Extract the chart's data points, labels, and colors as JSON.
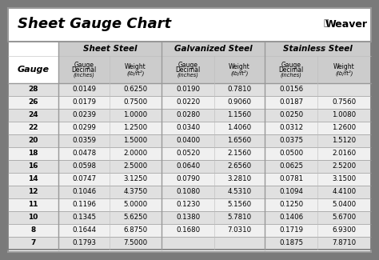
{
  "title": "Sheet Gauge Chart",
  "bg_outer": "#7a7a7a",
  "bg_white": "#ffffff",
  "gauges": [
    "28",
    "26",
    "24",
    "22",
    "20",
    "18",
    "16",
    "14",
    "12",
    "11",
    "10",
    "8",
    "7"
  ],
  "ss_dec": [
    "0.0149",
    "0.0179",
    "0.0239",
    "0.0299",
    "0.0359",
    "0.0478",
    "0.0598",
    "0.0747",
    "0.1046",
    "0.1196",
    "0.1345",
    "0.1644",
    "0.1793"
  ],
  "ss_wt": [
    "0.6250",
    "0.7500",
    "1.0000",
    "1.2500",
    "1.5000",
    "2.0000",
    "2.5000",
    "3.1250",
    "4.3750",
    "5.0000",
    "5.6250",
    "6.8750",
    "7.5000"
  ],
  "gv_dec": [
    "0.0190",
    "0.0220",
    "0.0280",
    "0.0340",
    "0.0400",
    "0.0520",
    "0.0640",
    "0.0790",
    "0.1080",
    "0.1230",
    "0.1380",
    "0.1680",
    ""
  ],
  "gv_wt": [
    "0.7810",
    "0.9060",
    "1.1560",
    "1.4060",
    "1.6560",
    "2.1560",
    "2.6560",
    "3.2810",
    "4.5310",
    "5.1560",
    "5.7810",
    "7.0310",
    ""
  ],
  "st_dec": [
    "0.0156",
    "0.0187",
    "0.0250",
    "0.0312",
    "0.0375",
    "0.0500",
    "0.0625",
    "0.0781",
    "0.1094",
    "0.1250",
    "0.1406",
    "0.1719",
    "0.1875"
  ],
  "st_wt": [
    "",
    "0.7560",
    "1.0080",
    "1.2600",
    "1.5120",
    "2.0160",
    "2.5200",
    "3.1500",
    "4.4100",
    "5.0400",
    "5.6700",
    "6.9300",
    "7.8710"
  ],
  "row_colors": [
    "#e0e0e0",
    "#f0f0f0"
  ],
  "header_color": "#cccccc",
  "div_color": "#888888",
  "line_color": "#999999"
}
